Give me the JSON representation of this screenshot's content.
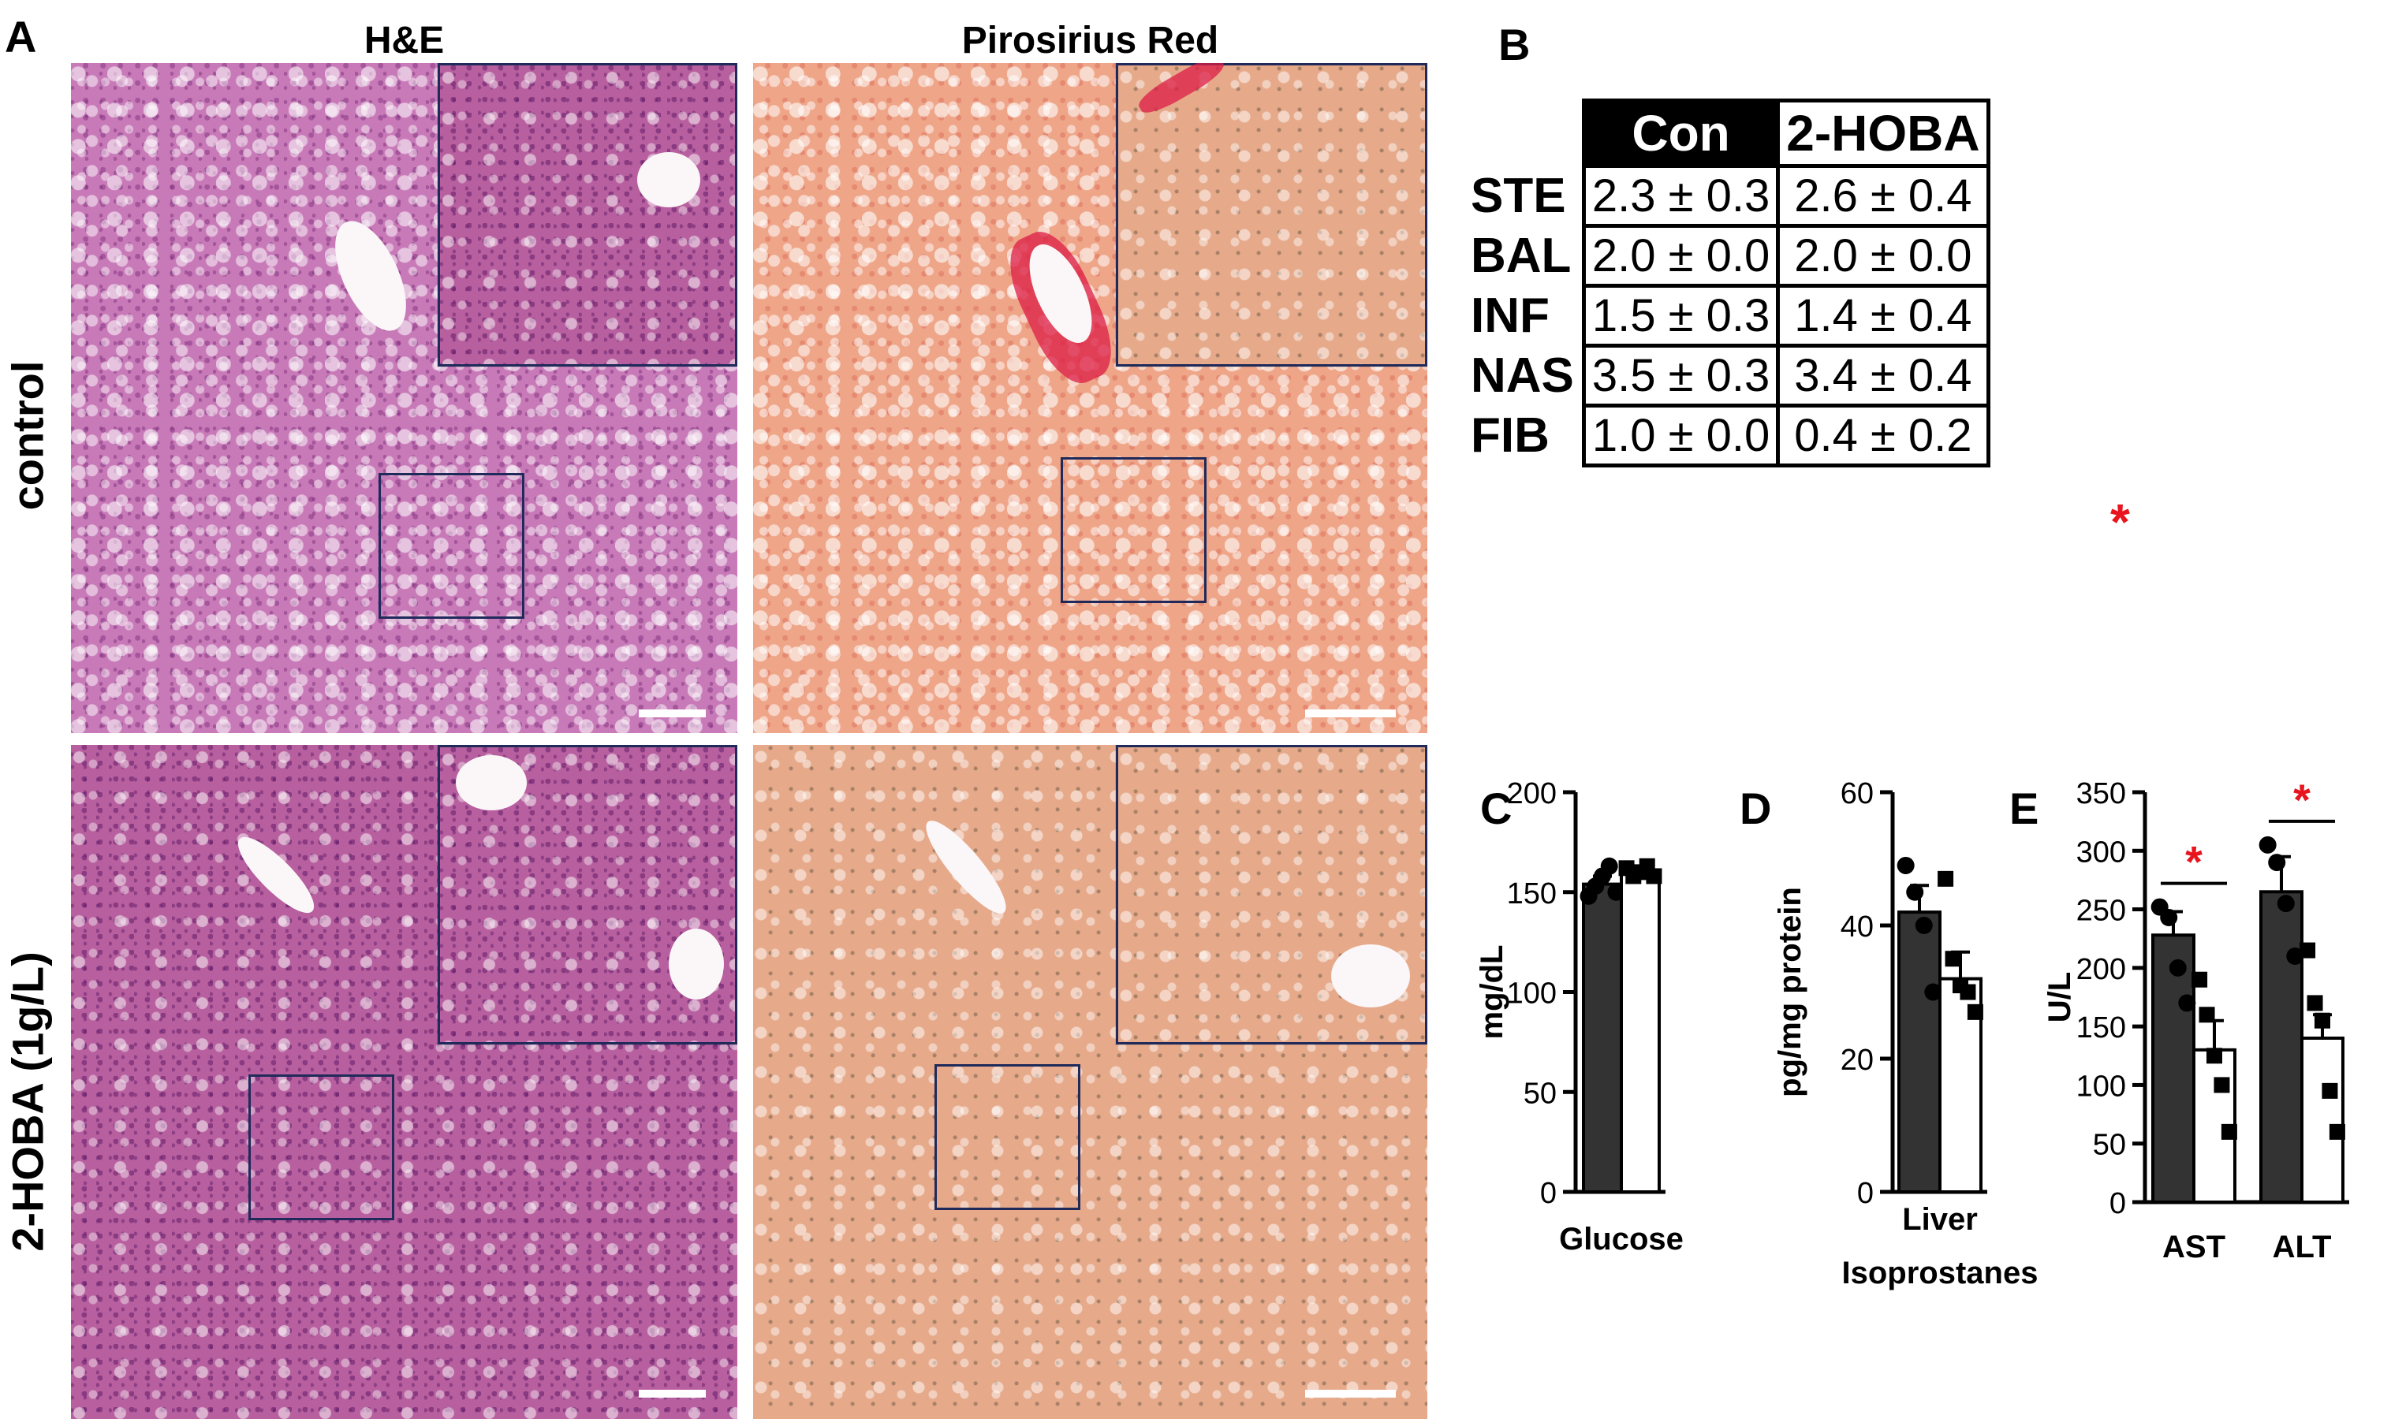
{
  "panel_letters": {
    "a": "A",
    "b": "B",
    "c": "C",
    "d": "D",
    "e": "E"
  },
  "column_headers": {
    "he": "H&E",
    "ps": "Pirosirius Red"
  },
  "row_headers": {
    "control": "control",
    "hoba": "2-HOBA (1g/L)"
  },
  "table_b": {
    "columns": [
      "Con",
      "2-HOBA"
    ],
    "rows": [
      {
        "label": "STE",
        "con": "2.3 ± 0.3",
        "hoba": "2.6 ± 0.4"
      },
      {
        "label": "BAL",
        "con": "2.0 ± 0.0",
        "hoba": "2.0 ± 0.0"
      },
      {
        "label": "INF",
        "con": "1.5 ± 0.3",
        "hoba": "1.4 ± 0.4"
      },
      {
        "label": "NAS",
        "con": "3.5 ± 0.3",
        "hoba": "3.4 ± 0.4"
      },
      {
        "label": "FIB",
        "con": "1.0 ± 0.0",
        "hoba": "0.4 ± 0.2"
      }
    ],
    "significance_marker": "*"
  },
  "colors": {
    "dark_bar": "#333333",
    "light_bar": "#ffffff",
    "significance": "#e8141e",
    "inset_border": "#1f2a5a"
  },
  "chart_data": [
    {
      "type": "bar",
      "panel": "C",
      "ylabel": "mg/dL",
      "xlabel": "Glucose",
      "ylim": [
        0,
        200
      ],
      "yticks": [
        0,
        50,
        100,
        150,
        200
      ],
      "groups": [
        {
          "name": "",
          "bars": [
            {
              "fill": "dark",
              "value": 154,
              "error": 4,
              "points": [
                148,
                153,
                158,
                163,
                150
              ],
              "marker": "circle"
            },
            {
              "fill": "light",
              "value": 160,
              "error": 3,
              "points": [
                162,
                158,
                160,
                163,
                158
              ],
              "marker": "square"
            }
          ]
        }
      ]
    },
    {
      "type": "bar",
      "panel": "D",
      "ylabel": "pg/mg protein",
      "xlabel": [
        "Liver",
        "Isoprostanes"
      ],
      "ylim": [
        0,
        60
      ],
      "yticks": [
        0,
        20,
        40,
        60
      ],
      "groups": [
        {
          "name": "",
          "bars": [
            {
              "fill": "dark",
              "value": 42,
              "error": 4,
              "points": [
                49,
                45,
                40,
                30
              ],
              "marker": "circle"
            },
            {
              "fill": "light",
              "value": 32,
              "error": 4,
              "points": [
                47,
                35,
                31,
                30,
                27
              ],
              "marker": "square"
            }
          ]
        }
      ]
    },
    {
      "type": "bar",
      "panel": "E",
      "ylabel": "U/L",
      "ylim": [
        0,
        350
      ],
      "yticks": [
        0,
        50,
        100,
        150,
        200,
        250,
        300,
        350
      ],
      "groups": [
        {
          "name": "AST",
          "bars": [
            {
              "fill": "dark",
              "value": 228,
              "error": 20,
              "points": [
                252,
                243,
                200,
                170
              ],
              "marker": "circle"
            },
            {
              "fill": "light",
              "value": 130,
              "error": 25,
              "points": [
                190,
                160,
                125,
                100,
                60
              ],
              "marker": "square"
            }
          ],
          "significant": true
        },
        {
          "name": "ALT",
          "bars": [
            {
              "fill": "dark",
              "value": 265,
              "error": 30,
              "points": [
                305,
                290,
                255,
                210
              ],
              "marker": "circle"
            },
            {
              "fill": "light",
              "value": 140,
              "error": 20,
              "points": [
                215,
                170,
                155,
                95,
                60
              ],
              "marker": "square"
            }
          ],
          "significant": true
        }
      ]
    }
  ]
}
